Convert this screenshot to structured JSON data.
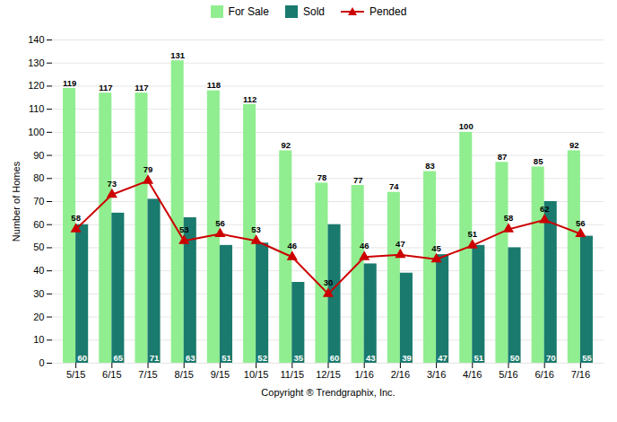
{
  "chart_data": {
    "type": "bar",
    "categories": [
      "5/15",
      "6/15",
      "7/15",
      "8/15",
      "9/15",
      "10/15",
      "11/15",
      "12/15",
      "1/16",
      "2/16",
      "3/16",
      "4/16",
      "5/16",
      "6/16",
      "7/16"
    ],
    "series": [
      {
        "name": "For Sale",
        "type": "bar",
        "color": "#90EE90",
        "values": [
          119,
          117,
          117,
          131,
          118,
          112,
          92,
          78,
          77,
          74,
          83,
          100,
          87,
          85,
          92
        ]
      },
      {
        "name": "Sold",
        "type": "bar",
        "color": "#1a7a6e",
        "values": [
          60,
          65,
          71,
          63,
          51,
          52,
          35,
          60,
          43,
          39,
          47,
          51,
          50,
          70,
          55
        ]
      },
      {
        "name": "Pended",
        "type": "line",
        "color": "#cc0000",
        "marker": "triangle",
        "values": [
          58,
          73,
          79,
          53,
          56,
          53,
          46,
          30,
          46,
          47,
          45,
          51,
          58,
          62,
          56
        ]
      }
    ],
    "ylabel": "Number of Homes",
    "xlabel": "Copyright ® Trendgraphix, Inc.",
    "ylim": [
      0,
      140
    ],
    "yticks": [
      0,
      10,
      20,
      30,
      40,
      50,
      60,
      70,
      80,
      90,
      100,
      110,
      120,
      130,
      140
    ],
    "grid": true,
    "legend": "top",
    "data_labels": true
  }
}
